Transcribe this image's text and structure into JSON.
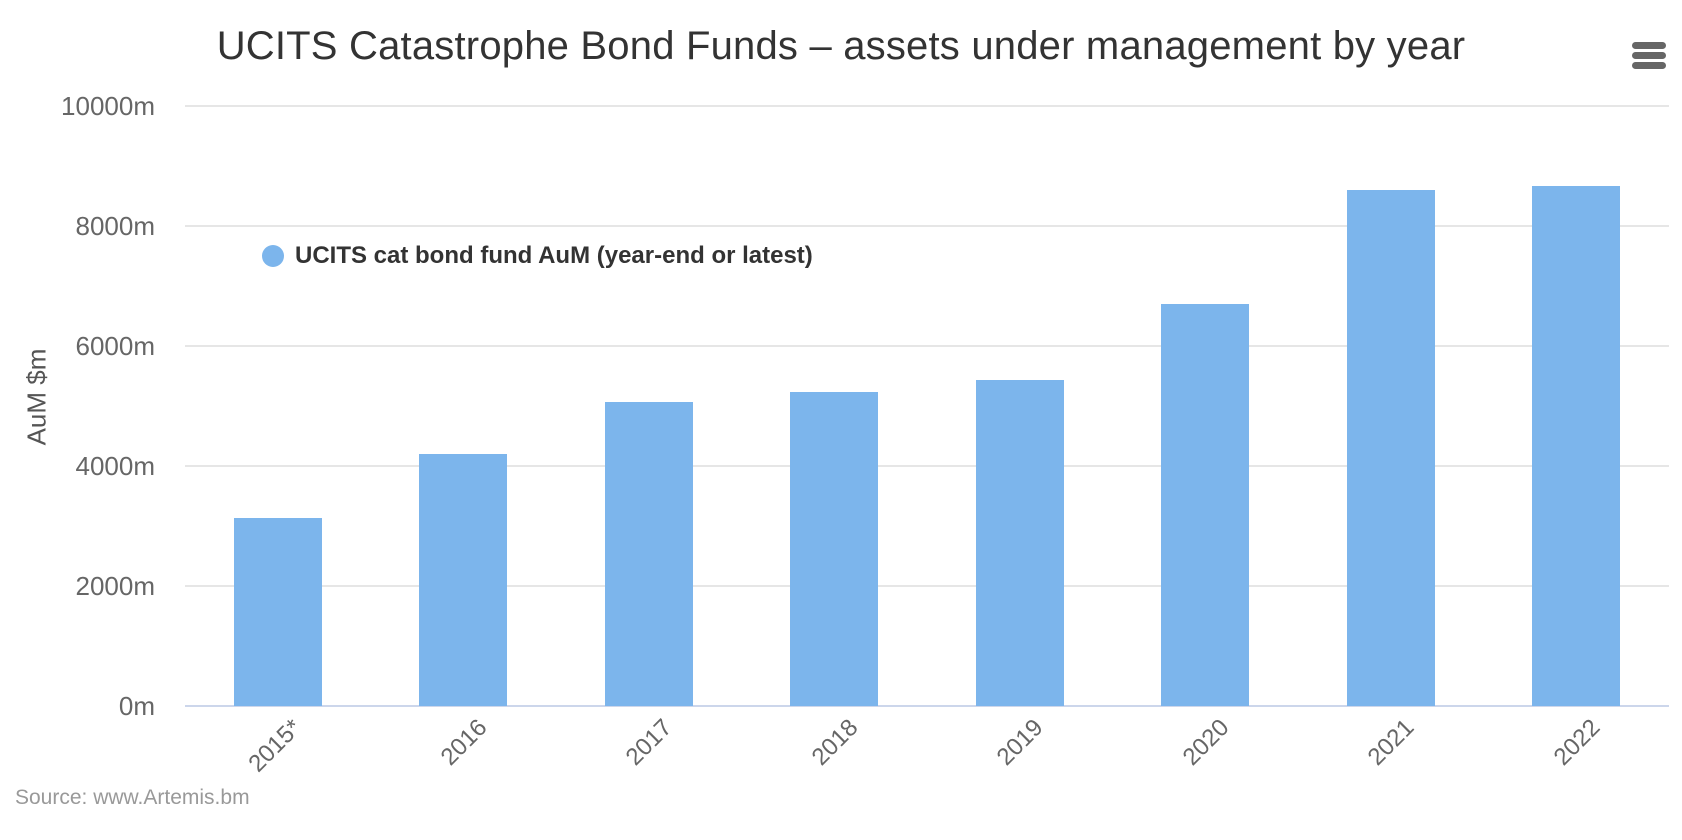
{
  "chart_data": {
    "type": "bar",
    "title": "UCITS Catastrophe Bond Funds – assets under management by year",
    "categories": [
      "2015*",
      "2016",
      "2017",
      "2018",
      "2019",
      "2020",
      "2021",
      "2022"
    ],
    "values": [
      3130,
      4200,
      5070,
      5230,
      5430,
      6700,
      8600,
      8670
    ],
    "series_name": "UCITS cat bond fund AuM (year-end or latest)",
    "xlabel": "",
    "ylabel": "AuM $m",
    "ylim": [
      0,
      10000
    ],
    "ytick_interval": 2000,
    "ytick_labels": [
      "0m",
      "2000m",
      "4000m",
      "6000m",
      "8000m",
      "10000m"
    ],
    "grid": "horizontal",
    "legend_position": "inside-top-left",
    "x_label_rotation": -45
  },
  "legend": {
    "label": "UCITS cat bond fund AuM (year-end or latest)"
  },
  "menu": {
    "icon": "hamburger-icon"
  },
  "source": "Source: www.Artemis.bm",
  "colors": {
    "bar": "#7cb5ec",
    "grid": "#e6e6e6",
    "axis_line": "#ccd6eb",
    "title_text": "#333333",
    "tick_text": "#666666",
    "legend_text": "#333333",
    "source_text": "#999999",
    "menu_icon": "#666666",
    "background": "#ffffff"
  }
}
